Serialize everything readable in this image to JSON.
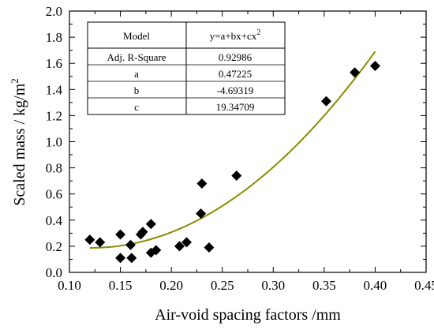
{
  "chart_data": {
    "type": "scatter",
    "xlabel": "Air-void spacing factors /mm",
    "ylabel": "Scaled mass / kg/m",
    "ylabel_sup": "2",
    "xlim": [
      0.1,
      0.45
    ],
    "ylim": [
      0.0,
      2.0
    ],
    "xticks": [
      "0.10",
      "0.15",
      "0.20",
      "0.25",
      "0.30",
      "0.35",
      "0.40",
      "0.45"
    ],
    "yticks": [
      "0.0",
      "0.2",
      "0.4",
      "0.6",
      "0.8",
      "1.0",
      "1.2",
      "1.4",
      "1.6",
      "1.8",
      "2.0"
    ],
    "colors": {
      "points": "#000000",
      "fit_line": "#8c8c00"
    },
    "points": [
      {
        "x": 0.12,
        "y": 0.25
      },
      {
        "x": 0.13,
        "y": 0.23
      },
      {
        "x": 0.15,
        "y": 0.29
      },
      {
        "x": 0.15,
        "y": 0.11
      },
      {
        "x": 0.16,
        "y": 0.21
      },
      {
        "x": 0.161,
        "y": 0.11
      },
      {
        "x": 0.17,
        "y": 0.29
      },
      {
        "x": 0.172,
        "y": 0.31
      },
      {
        "x": 0.18,
        "y": 0.37
      },
      {
        "x": 0.18,
        "y": 0.15
      },
      {
        "x": 0.185,
        "y": 0.17
      },
      {
        "x": 0.208,
        "y": 0.2
      },
      {
        "x": 0.215,
        "y": 0.23
      },
      {
        "x": 0.229,
        "y": 0.45
      },
      {
        "x": 0.23,
        "y": 0.68
      },
      {
        "x": 0.237,
        "y": 0.19
      },
      {
        "x": 0.264,
        "y": 0.74
      },
      {
        "x": 0.352,
        "y": 1.31
      },
      {
        "x": 0.38,
        "y": 1.53
      },
      {
        "x": 0.4,
        "y": 1.58
      }
    ],
    "fit": {
      "a": 0.47225,
      "b": -4.69319,
      "c": 19.34709,
      "x_range": [
        0.12,
        0.4
      ]
    },
    "table": {
      "header": [
        "Model",
        "y=a+bx+cx",
        "2"
      ],
      "rows": [
        [
          "Adj. R-Square",
          "0.92986"
        ],
        [
          "a",
          "0.47225"
        ],
        [
          "b",
          "-4.69319"
        ],
        [
          "c",
          "19.34709"
        ]
      ]
    }
  }
}
